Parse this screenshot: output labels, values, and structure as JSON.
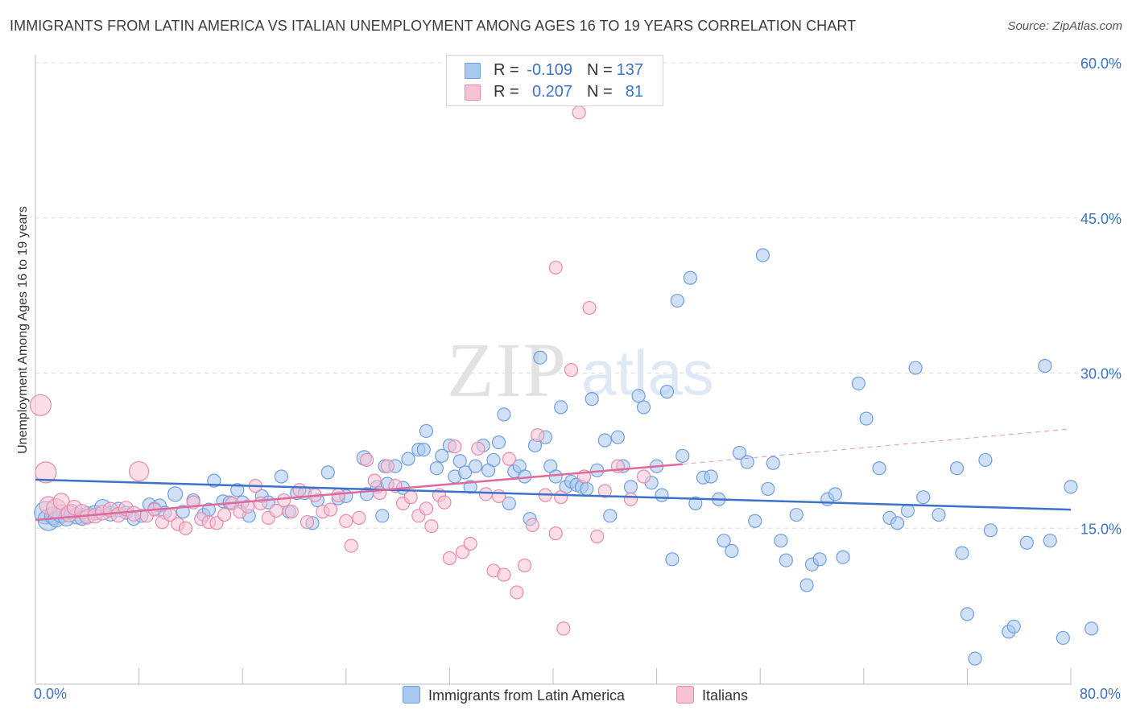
{
  "title": "IMMIGRANTS FROM LATIN AMERICA VS ITALIAN UNEMPLOYMENT AMONG AGES 16 TO 19 YEARS CORRELATION CHART",
  "source": "Source: ZipAtlas.com",
  "watermark": {
    "zip": "ZIP",
    "atlas": "atlas"
  },
  "legend": {
    "r_label": "R =",
    "n_label": "N =",
    "rows": [
      {
        "r": "-0.109",
        "n": "137",
        "color": "#a9c8f0",
        "stroke": "#6f9ee0"
      },
      {
        "r": "0.207",
        "n": "81",
        "color": "#f7c2d3",
        "stroke": "#e88aaa"
      }
    ]
  },
  "chart_data": {
    "type": "scatter",
    "title": "IMMIGRANTS FROM LATIN AMERICA VS ITALIAN UNEMPLOYMENT AMONG AGES 16 TO 19 YEARS CORRELATION CHART",
    "xlabel": "",
    "ylabel": "Unemployment Among Ages 16 to 19 years",
    "xlim": [
      0,
      80
    ],
    "ylim": [
      0,
      60
    ],
    "x_tick_labels": [
      "0.0%",
      "80.0%"
    ],
    "y_ticks": [
      15,
      30,
      45,
      60
    ],
    "y_tick_labels": [
      "15.0%",
      "30.0%",
      "45.0%",
      "60.0%"
    ],
    "grid": "horizontal-dashed",
    "legend_position": "top-center",
    "series": [
      {
        "name": "Immigrants from Latin America",
        "color": "#a9c8f0",
        "stroke": "#6f9ee0",
        "line_color": "#3b73c8",
        "trend": {
          "x": [
            0,
            80
          ],
          "y": [
            19.7,
            16.8
          ]
        },
        "points": [
          [
            0.8,
            16.5,
            14
          ],
          [
            1.0,
            15.8,
            13
          ],
          [
            1.4,
            16.2,
            11
          ],
          [
            1.6,
            15.9,
            10
          ],
          [
            2.0,
            16.4,
            11
          ],
          [
            2.4,
            16.0,
            10
          ],
          [
            2.8,
            16.6,
            9
          ],
          [
            3.2,
            16.2,
            10
          ],
          [
            3.6,
            16.0,
            9
          ],
          [
            4.0,
            16.3,
            10
          ],
          [
            4.6,
            16.5,
            9
          ],
          [
            5.2,
            17.0,
            10
          ],
          [
            5.8,
            16.4,
            9
          ],
          [
            6.4,
            16.8,
            9
          ],
          [
            7.0,
            16.5,
            8
          ],
          [
            7.6,
            15.9,
            8
          ],
          [
            8.2,
            16.2,
            8
          ],
          [
            8.8,
            17.3,
            8
          ],
          [
            9.2,
            16.9,
            8
          ],
          [
            9.6,
            17.2,
            8
          ],
          [
            10.0,
            16.5,
            8
          ],
          [
            10.8,
            18.3,
            9
          ],
          [
            11.4,
            16.6,
            8
          ],
          [
            12.2,
            17.7,
            8
          ],
          [
            13.0,
            16.3,
            8
          ],
          [
            13.4,
            16.8,
            8
          ],
          [
            13.8,
            19.6,
            8
          ],
          [
            14.5,
            17.6,
            8
          ],
          [
            15.0,
            17.5,
            8
          ],
          [
            15.6,
            18.7,
            8
          ],
          [
            16.0,
            17.5,
            8
          ],
          [
            16.5,
            16.2,
            8
          ],
          [
            17.5,
            18.1,
            8
          ],
          [
            18.0,
            17.5,
            8
          ],
          [
            19.0,
            20.0,
            8
          ],
          [
            19.6,
            16.6,
            8
          ],
          [
            20.2,
            18.4,
            8
          ],
          [
            20.8,
            18.4,
            8
          ],
          [
            21.4,
            15.5,
            8
          ],
          [
            21.8,
            17.7,
            8
          ],
          [
            22.6,
            20.4,
            8
          ],
          [
            23.4,
            17.9,
            8
          ],
          [
            24.0,
            18.1,
            8
          ],
          [
            25.4,
            21.8,
            9
          ],
          [
            25.6,
            18.3,
            8
          ],
          [
            26.4,
            19.0,
            8
          ],
          [
            26.8,
            16.2,
            8
          ],
          [
            27.0,
            21.0,
            8
          ],
          [
            27.2,
            19.3,
            8
          ],
          [
            27.8,
            21.0,
            8
          ],
          [
            28.4,
            18.9,
            8
          ],
          [
            28.8,
            21.7,
            8
          ],
          [
            29.6,
            22.6,
            8
          ],
          [
            30.0,
            22.6,
            8
          ],
          [
            30.2,
            24.4,
            8
          ],
          [
            31.0,
            20.8,
            8
          ],
          [
            31.4,
            22.0,
            8
          ],
          [
            32.0,
            23.0,
            8
          ],
          [
            32.4,
            20.0,
            8
          ],
          [
            32.8,
            21.5,
            8
          ],
          [
            33.2,
            20.4,
            8
          ],
          [
            33.6,
            19.0,
            8
          ],
          [
            34.0,
            21.0,
            8
          ],
          [
            34.6,
            23.0,
            8
          ],
          [
            35.0,
            20.6,
            8
          ],
          [
            35.4,
            21.6,
            8
          ],
          [
            35.8,
            23.3,
            8
          ],
          [
            36.2,
            26.0,
            8
          ],
          [
            36.6,
            17.4,
            8
          ],
          [
            37.0,
            20.5,
            8
          ],
          [
            37.4,
            21.0,
            8
          ],
          [
            37.8,
            20.0,
            8
          ],
          [
            38.2,
            15.9,
            8
          ],
          [
            38.6,
            23.0,
            8
          ],
          [
            39.0,
            31.5,
            8
          ],
          [
            39.4,
            23.8,
            8
          ],
          [
            39.8,
            21.0,
            8
          ],
          [
            40.2,
            20.0,
            8
          ],
          [
            40.6,
            26.7,
            8
          ],
          [
            41.0,
            19.0,
            8
          ],
          [
            41.4,
            19.5,
            8
          ],
          [
            41.8,
            19.2,
            8
          ],
          [
            42.2,
            19.0,
            8
          ],
          [
            42.6,
            18.8,
            8
          ],
          [
            43.0,
            27.5,
            8
          ],
          [
            43.4,
            20.6,
            8
          ],
          [
            44.0,
            23.5,
            8
          ],
          [
            44.4,
            16.2,
            8
          ],
          [
            45.0,
            23.8,
            8
          ],
          [
            45.4,
            21.0,
            8
          ],
          [
            46.0,
            19.0,
            8
          ],
          [
            46.6,
            27.8,
            8
          ],
          [
            47.0,
            26.7,
            8
          ],
          [
            47.6,
            19.4,
            8
          ],
          [
            48.0,
            21.0,
            8
          ],
          [
            48.4,
            18.2,
            8
          ],
          [
            48.8,
            28.2,
            8
          ],
          [
            49.2,
            12.0,
            8
          ],
          [
            49.6,
            37.0,
            8
          ],
          [
            50.0,
            22.0,
            8
          ],
          [
            50.6,
            39.2,
            8
          ],
          [
            51.0,
            17.4,
            8
          ],
          [
            51.6,
            19.9,
            8
          ],
          [
            52.2,
            20.0,
            8
          ],
          [
            52.8,
            17.8,
            8
          ],
          [
            53.2,
            13.8,
            8
          ],
          [
            53.8,
            12.8,
            8
          ],
          [
            54.4,
            22.3,
            8
          ],
          [
            55.0,
            21.4,
            8
          ],
          [
            55.6,
            15.7,
            8
          ],
          [
            56.2,
            41.4,
            8
          ],
          [
            56.6,
            18.8,
            8
          ],
          [
            57.0,
            21.3,
            8
          ],
          [
            57.6,
            13.8,
            8
          ],
          [
            58.0,
            11.9,
            8
          ],
          [
            58.8,
            16.3,
            8
          ],
          [
            59.6,
            9.5,
            8
          ],
          [
            60.0,
            11.5,
            8
          ],
          [
            60.6,
            12.0,
            8
          ],
          [
            61.2,
            17.8,
            8
          ],
          [
            61.8,
            18.3,
            8
          ],
          [
            62.4,
            12.2,
            8
          ],
          [
            63.6,
            29.0,
            8
          ],
          [
            64.2,
            25.6,
            8
          ],
          [
            65.2,
            20.8,
            8
          ],
          [
            66.0,
            16.0,
            8
          ],
          [
            66.6,
            15.5,
            8
          ],
          [
            67.4,
            16.7,
            8
          ],
          [
            68.0,
            30.5,
            8
          ],
          [
            68.6,
            18.0,
            8
          ],
          [
            69.8,
            16.3,
            8
          ],
          [
            71.2,
            20.8,
            8
          ],
          [
            71.6,
            12.6,
            8
          ],
          [
            72.0,
            6.7,
            8
          ],
          [
            72.6,
            2.4,
            8
          ],
          [
            73.4,
            21.6,
            8
          ],
          [
            73.8,
            14.8,
            8
          ],
          [
            75.2,
            5.0,
            8
          ],
          [
            75.6,
            5.5,
            8
          ],
          [
            76.6,
            13.6,
            8
          ],
          [
            78.0,
            30.7,
            8
          ],
          [
            78.4,
            13.8,
            8
          ],
          [
            79.4,
            4.4,
            8
          ],
          [
            80.0,
            19.0,
            8
          ],
          [
            81.6,
            5.3,
            8
          ]
        ]
      },
      {
        "name": "Italians",
        "color": "#f7c2d3",
        "stroke": "#e88aaa",
        "line_color": "#e0689a",
        "trend": {
          "x": [
            0,
            50
          ],
          "y": [
            15.8,
            21.2
          ],
          "dash_to": [
            80,
            24.6
          ]
        },
        "points": [
          [
            0.4,
            26.9,
            13
          ],
          [
            0.8,
            20.4,
            13
          ],
          [
            1.0,
            17.2,
            11
          ],
          [
            1.6,
            16.9,
            12
          ],
          [
            2.0,
            17.6,
            10
          ],
          [
            2.6,
            16.4,
            10
          ],
          [
            3.0,
            17.0,
            9
          ],
          [
            3.6,
            16.6,
            9
          ],
          [
            4.0,
            16.1,
            9
          ],
          [
            4.6,
            16.2,
            9
          ],
          [
            5.2,
            16.5,
            9
          ],
          [
            5.8,
            16.8,
            9
          ],
          [
            6.4,
            16.3,
            9
          ],
          [
            7.0,
            16.9,
            9
          ],
          [
            7.6,
            16.4,
            9
          ],
          [
            8.0,
            20.5,
            12
          ],
          [
            8.6,
            16.2,
            8
          ],
          [
            9.2,
            16.8,
            8
          ],
          [
            9.8,
            15.6,
            8
          ],
          [
            10.4,
            16.3,
            8
          ],
          [
            11.0,
            15.4,
            8
          ],
          [
            11.6,
            15.0,
            8
          ],
          [
            12.2,
            17.5,
            8
          ],
          [
            12.8,
            15.9,
            8
          ],
          [
            13.4,
            15.6,
            8
          ],
          [
            14.0,
            15.5,
            8
          ],
          [
            14.6,
            16.3,
            8
          ],
          [
            15.2,
            17.4,
            8
          ],
          [
            15.8,
            16.6,
            8
          ],
          [
            16.4,
            17.1,
            8
          ],
          [
            17.0,
            19.1,
            8
          ],
          [
            17.4,
            17.4,
            8
          ],
          [
            18.0,
            16.0,
            8
          ],
          [
            18.6,
            16.7,
            8
          ],
          [
            19.2,
            17.7,
            8
          ],
          [
            19.8,
            16.6,
            8
          ],
          [
            20.4,
            18.7,
            8
          ],
          [
            21.0,
            15.6,
            8
          ],
          [
            21.6,
            18.2,
            8
          ],
          [
            22.2,
            16.6,
            8
          ],
          [
            22.8,
            16.8,
            8
          ],
          [
            23.4,
            18.2,
            8
          ],
          [
            24.0,
            15.7,
            8
          ],
          [
            24.4,
            13.3,
            8
          ],
          [
            25.0,
            16.0,
            8
          ],
          [
            25.6,
            21.6,
            8
          ],
          [
            26.2,
            19.6,
            8
          ],
          [
            26.6,
            18.4,
            8
          ],
          [
            27.2,
            21.0,
            8
          ],
          [
            27.8,
            19.1,
            8
          ],
          [
            28.4,
            17.4,
            8
          ],
          [
            29.0,
            18.0,
            8
          ],
          [
            29.6,
            16.2,
            8
          ],
          [
            30.2,
            16.9,
            8
          ],
          [
            30.6,
            15.2,
            8
          ],
          [
            31.2,
            18.2,
            8
          ],
          [
            31.6,
            17.5,
            8
          ],
          [
            32.0,
            12.1,
            8
          ],
          [
            32.4,
            22.9,
            8
          ],
          [
            33.0,
            12.7,
            8
          ],
          [
            33.6,
            13.5,
            8
          ],
          [
            34.2,
            22.7,
            8
          ],
          [
            34.8,
            18.3,
            8
          ],
          [
            35.4,
            10.9,
            8
          ],
          [
            35.8,
            18.1,
            8
          ],
          [
            36.2,
            10.5,
            8
          ],
          [
            36.6,
            21.7,
            8
          ],
          [
            37.2,
            8.8,
            8
          ],
          [
            37.8,
            11.4,
            8
          ],
          [
            38.4,
            15.3,
            8
          ],
          [
            38.8,
            24.0,
            8
          ],
          [
            39.4,
            18.2,
            8
          ],
          [
            40.2,
            14.5,
            8
          ],
          [
            40.6,
            18.0,
            8
          ],
          [
            40.2,
            40.2,
            8
          ],
          [
            40.8,
            5.3,
            8
          ],
          [
            41.4,
            30.3,
            8
          ],
          [
            42.0,
            55.2,
            8
          ],
          [
            42.4,
            20.0,
            8
          ],
          [
            42.8,
            36.3,
            8
          ],
          [
            43.4,
            14.2,
            8
          ],
          [
            44.0,
            18.6,
            8
          ],
          [
            45.0,
            21.0,
            8
          ],
          [
            46.0,
            17.8,
            8
          ],
          [
            47.0,
            20.0,
            8
          ]
        ]
      }
    ]
  },
  "bottom_legend": [
    {
      "label": "Immigrants from Latin America",
      "color": "#a9c8f0",
      "stroke": "#6f9ee0"
    },
    {
      "label": "Italians",
      "color": "#f7c2d3",
      "stroke": "#e88aaa"
    }
  ]
}
